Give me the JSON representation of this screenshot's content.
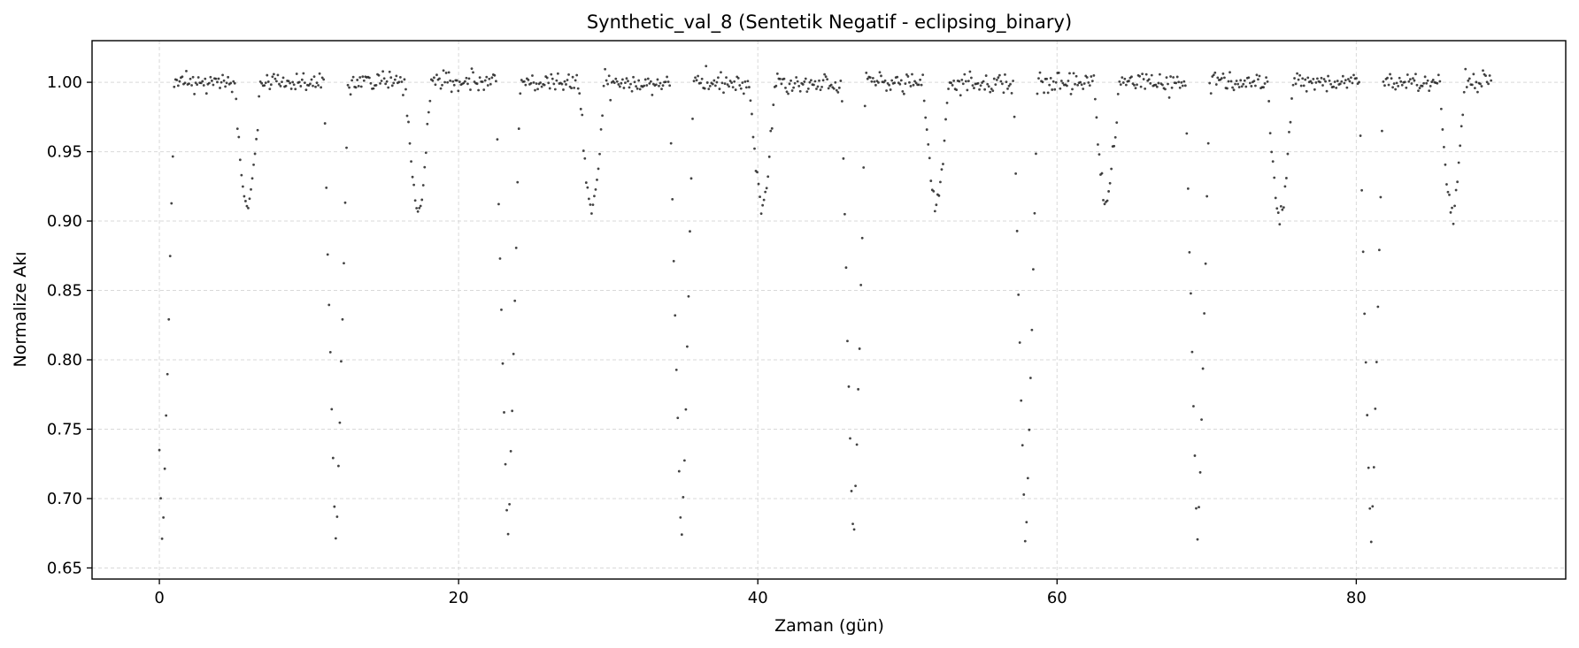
{
  "chart_data": {
    "type": "scatter",
    "title": "Synthetic_val_8 (Sentetik Negatif - eclipsing_binary)",
    "xlabel": "Zaman (gün)",
    "ylabel": "Normalize Akı",
    "xlim": [
      -4.5,
      94
    ],
    "ylim": [
      0.642,
      1.03
    ],
    "xticks": [
      0,
      20,
      40,
      60,
      80
    ],
    "yticks": [
      0.65,
      0.7,
      0.75,
      0.8,
      0.85,
      0.9,
      0.95,
      1.0
    ],
    "xtick_labels": [
      "0",
      "20",
      "40",
      "60",
      "80"
    ],
    "ytick_labels": [
      "0.65",
      "0.70",
      "0.75",
      "0.80",
      "0.85",
      "0.90",
      "0.95",
      "1.00"
    ],
    "grid": true,
    "marker_color": "#222222",
    "series": [
      {
        "x_range": [
          0,
          89.1
        ],
        "baseline": 1.0,
        "noise": 0.0035,
        "sample_spacing": 0.09,
        "primary_eclipses": [
          {
            "center": 0.2,
            "depth": 0.665
          },
          {
            "center": 11.8,
            "depth": 0.665
          },
          {
            "center": 23.3,
            "depth": 0.667
          },
          {
            "center": 34.9,
            "depth": 0.668
          },
          {
            "center": 46.4,
            "depth": 0.666
          },
          {
            "center": 57.9,
            "depth": 0.663
          },
          {
            "center": 69.4,
            "depth": 0.665
          },
          {
            "center": 81.0,
            "depth": 0.665
          }
        ],
        "primary_half_width": 0.8,
        "secondary_eclipses": [
          {
            "center": 5.9,
            "depth": 0.908
          },
          {
            "center": 17.3,
            "depth": 0.906
          },
          {
            "center": 28.9,
            "depth": 0.907
          },
          {
            "center": 40.3,
            "depth": 0.91
          },
          {
            "center": 51.9,
            "depth": 0.91
          },
          {
            "center": 63.3,
            "depth": 0.914
          },
          {
            "center": 74.9,
            "depth": 0.902
          },
          {
            "center": 86.4,
            "depth": 0.903
          }
        ],
        "secondary_half_width": 0.85
      }
    ]
  }
}
